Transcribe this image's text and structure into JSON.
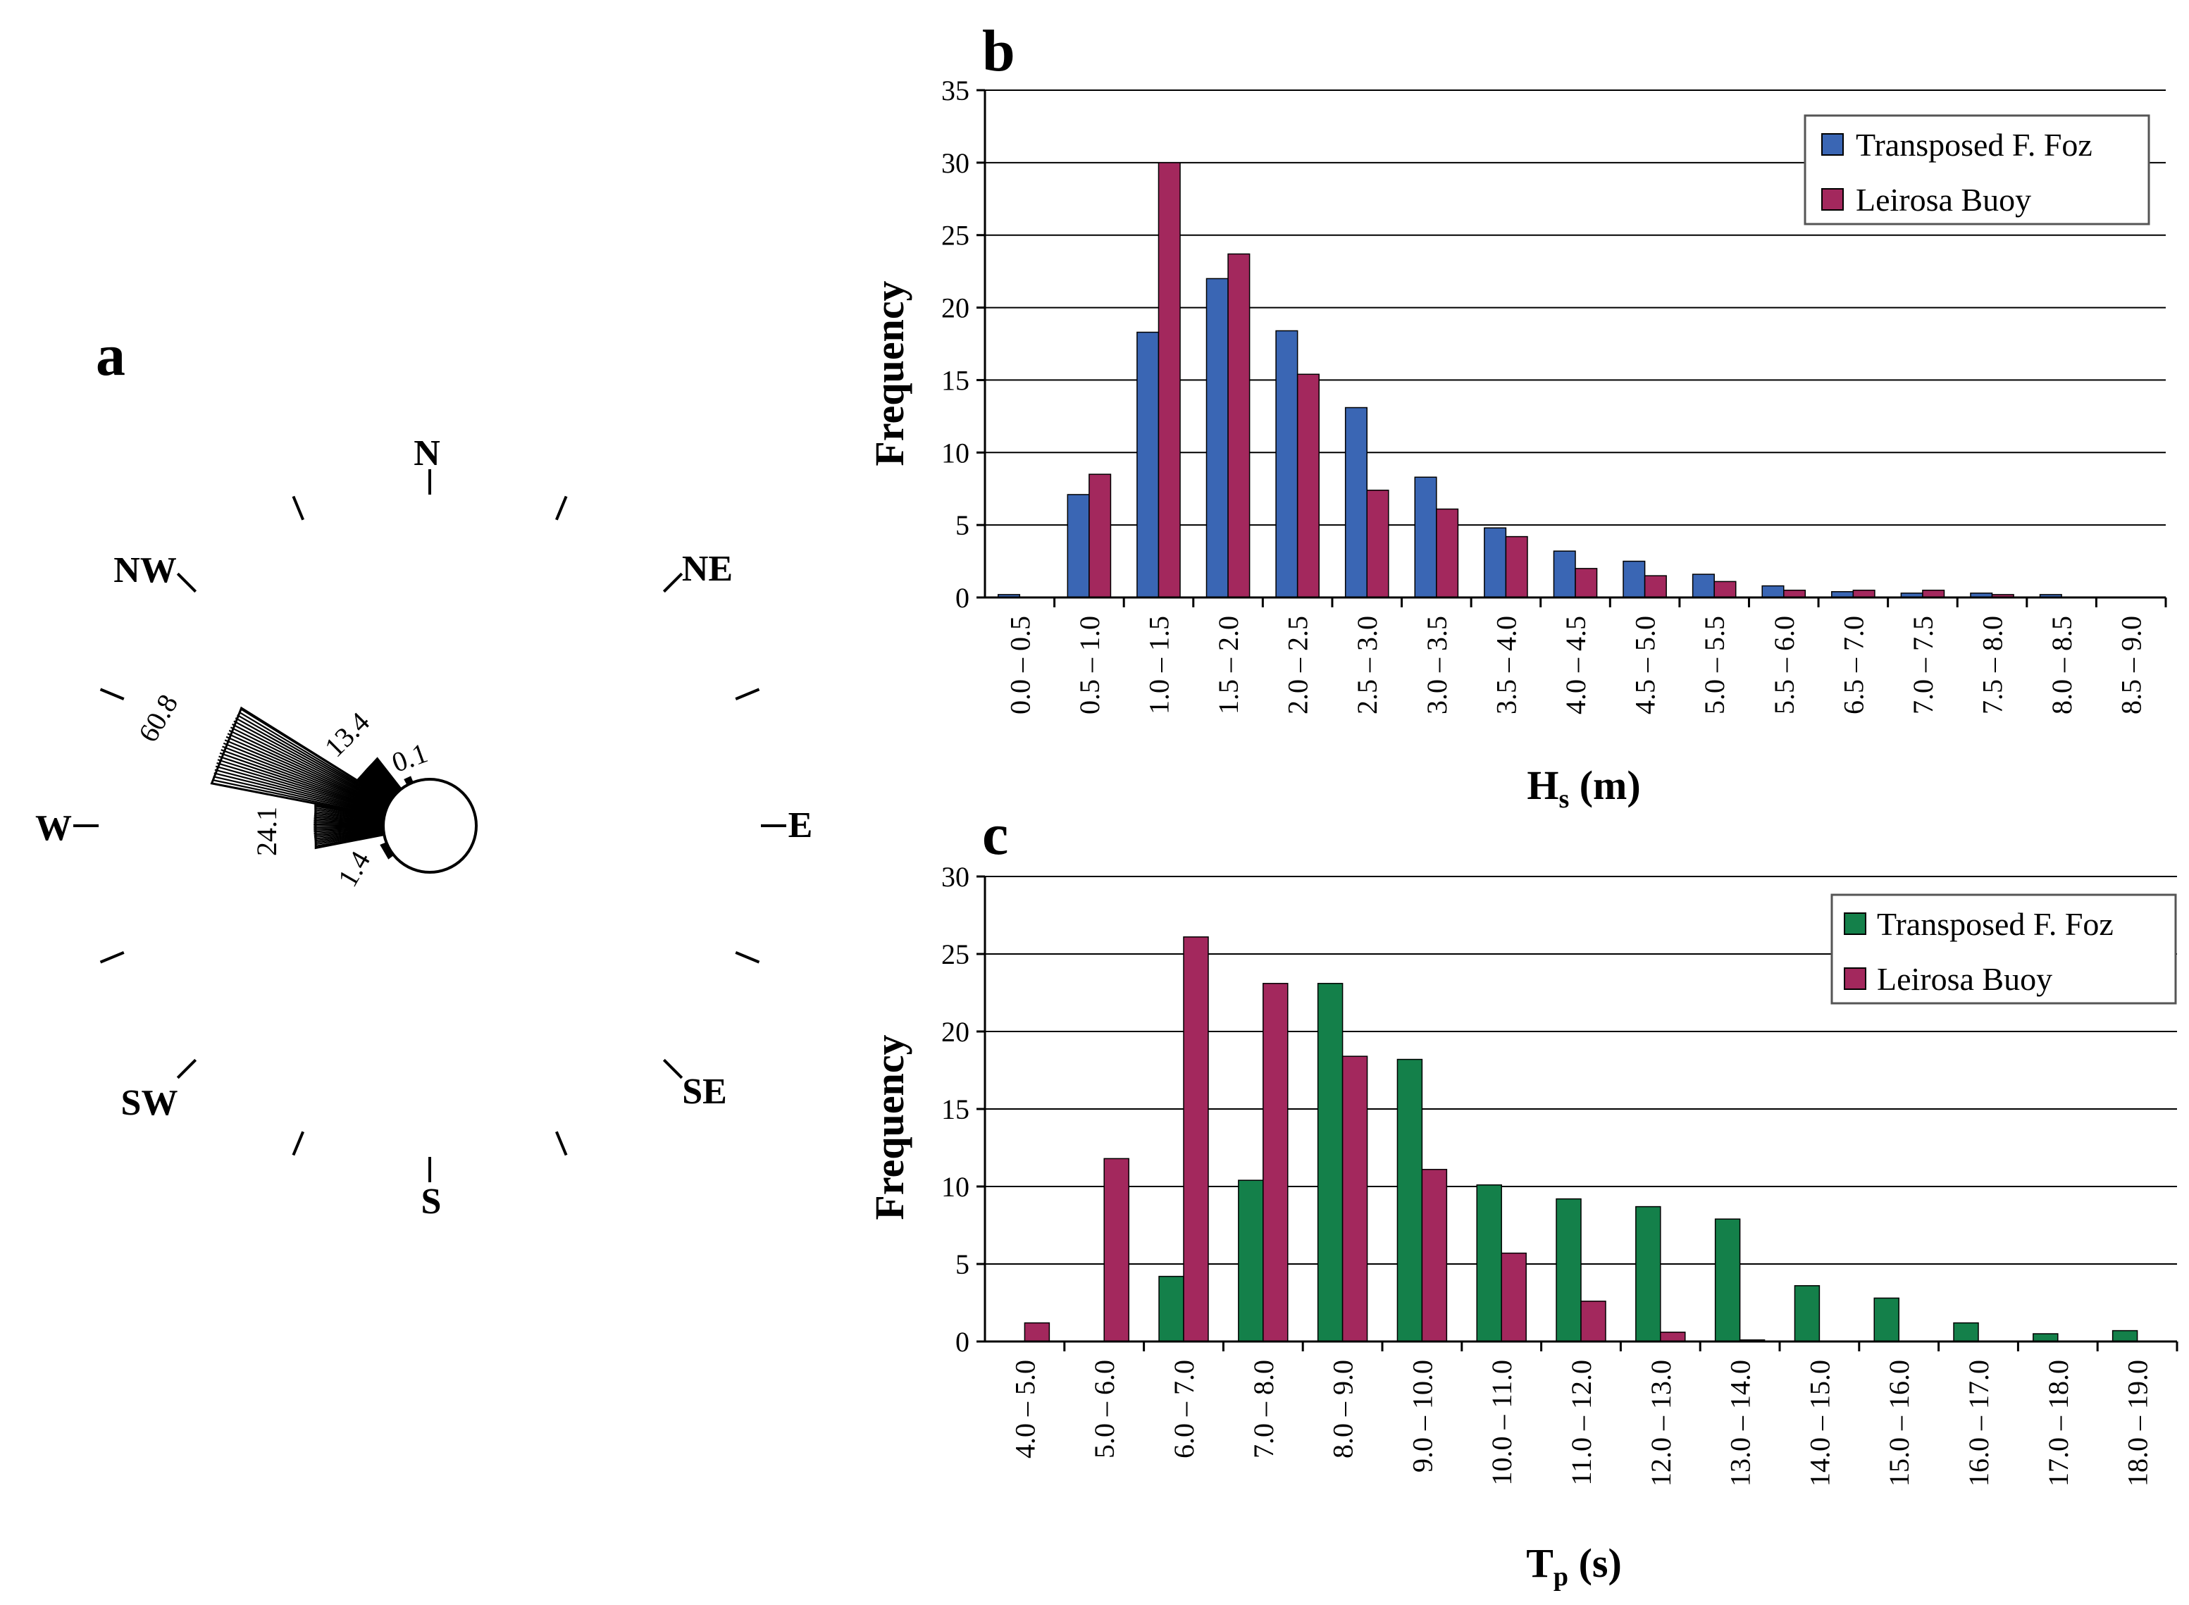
{
  "chart_data": [
    {
      "panel": "a",
      "type": "rose",
      "directions": [
        "N",
        "NE",
        "E",
        "SE",
        "S",
        "SW",
        "W",
        "NW"
      ],
      "sectors": [
        {
          "value": 0.1
        },
        {
          "value": 13.4
        },
        {
          "value": 60.8
        },
        {
          "value": 24.1
        },
        {
          "value": 1.4
        }
      ]
    },
    {
      "panel": "b",
      "type": "bar",
      "title": "",
      "xlabel_main": "H",
      "xlabel_sub": "s",
      "xlabel_unit": " (m)",
      "ylabel": "Frequency",
      "ylim": [
        0,
        35
      ],
      "yticks": [
        0,
        5,
        10,
        15,
        20,
        25,
        30,
        35
      ],
      "grid": true,
      "legend_position": "top-right",
      "categories": [
        "0.0 – 0.5",
        "0.5 – 1.0",
        "1.0 – 1.5",
        "1.5 – 2.0",
        "2.0 – 2.5",
        "2.5 – 3.0",
        "3.0 – 3.5",
        "3.5 – 4.0",
        "4.0 – 4.5",
        "4.5 – 5.0",
        "5.0 – 5.5",
        "5.5 – 6.0",
        "6.5 – 7.0",
        "7.0 – 7.5",
        "7.5 – 8.0",
        "8.0 – 8.5",
        "8.5 – 9.0"
      ],
      "series": [
        {
          "name": "Transposed F. Foz",
          "color": "#3a66b4",
          "values": [
            0.2,
            7.1,
            18.3,
            22.0,
            18.4,
            13.1,
            8.3,
            4.8,
            3.2,
            2.5,
            1.6,
            0.8,
            0.4,
            0.3,
            0.3,
            0.2,
            0
          ]
        },
        {
          "name": "Leirosa Buoy",
          "color": "#a3285d",
          "values": [
            0,
            8.5,
            30.0,
            23.7,
            15.4,
            7.4,
            6.1,
            4.2,
            2.0,
            1.5,
            1.1,
            0.5,
            0.5,
            0.5,
            0.2,
            0,
            0
          ]
        }
      ]
    },
    {
      "panel": "c",
      "type": "bar",
      "title": "",
      "xlabel_main": "T",
      "xlabel_sub": "p",
      "xlabel_unit": " (s)",
      "ylabel": "Frequency",
      "ylim": [
        0,
        30
      ],
      "yticks": [
        0,
        5,
        10,
        15,
        20,
        25,
        30
      ],
      "grid": true,
      "legend_position": "top-right",
      "categories": [
        "4.0 – 5.0",
        "5.0 – 6.0",
        "6.0 – 7.0",
        "7.0 – 8.0",
        "8.0 – 9.0",
        "9.0 – 10.0",
        "10.0 – 11.0",
        "11.0 – 12.0",
        "12.0 – 13.0",
        "13.0 – 14.0",
        "14.0 – 15.0",
        "15.0 – 16.0",
        "16.0 – 17.0",
        "17.0 – 18.0",
        "18.0 – 19.0"
      ],
      "series": [
        {
          "name": "Transposed F. Foz",
          "color": "#14804a",
          "values": [
            0,
            0,
            4.2,
            10.4,
            23.1,
            18.2,
            10.1,
            9.2,
            8.7,
            7.9,
            3.6,
            2.8,
            1.2,
            0.5,
            0.7
          ]
        },
        {
          "name": "Leirosa Buoy",
          "color": "#a3285d",
          "values": [
            1.2,
            11.8,
            26.1,
            23.1,
            18.4,
            11.1,
            5.7,
            2.6,
            0.6,
            0.1,
            0,
            0,
            0,
            0,
            0
          ]
        }
      ]
    }
  ]
}
